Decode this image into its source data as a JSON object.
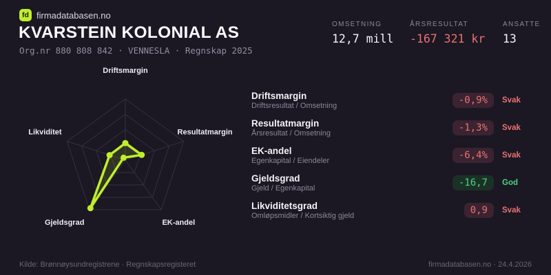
{
  "header": {
    "logo_text": "fd",
    "brand": "firmadatabasen.no",
    "company_name": "KVARSTEIN KOLONIAL AS",
    "subtitle": "Org.nr 880 808 842 · VENNESLA · Regnskap 2025"
  },
  "stats": {
    "items": [
      {
        "label": "OMSETNING",
        "value": "12,7 mill",
        "negative": false
      },
      {
        "label": "ÅRSRESULTAT",
        "value": "-167 321 kr",
        "negative": true
      },
      {
        "label": "ANSATTE",
        "value": "13",
        "negative": false
      }
    ]
  },
  "metrics": {
    "rows": [
      {
        "title": "Driftsmargin",
        "formula": "Driftsresultat / Omsetning",
        "value": "-0,9%",
        "status": "Svak",
        "tone": "bad"
      },
      {
        "title": "Resultatmargin",
        "formula": "Årsresultat / Omsetning",
        "value": "-1,3%",
        "status": "Svak",
        "tone": "bad"
      },
      {
        "title": "EK-andel",
        "formula": "Egenkapital / Eiendeler",
        "value": "-6,4%",
        "status": "Svak",
        "tone": "bad"
      },
      {
        "title": "Gjeldsgrad",
        "formula": "Gjeld / Egenkapital",
        "value": "-16,7",
        "status": "God",
        "tone": "good"
      },
      {
        "title": "Likviditetsgrad",
        "formula": "Omløpsmidler / Kortsiktig gjeld",
        "value": "0,9",
        "status": "Svak",
        "tone": "bad"
      }
    ]
  },
  "chart_data": {
    "type": "radar",
    "axes": [
      "Driftsmargin",
      "Resultatmargin",
      "EK-andel",
      "Gjeldsgrad",
      "Likviditet"
    ],
    "values_fraction": [
      0.28,
      0.28,
      -0.05,
      0.97,
      0.27
    ],
    "rings": [
      0.25,
      0.5,
      0.75,
      1.0
    ],
    "legend": "none",
    "colors": {
      "line": "#bfef2a",
      "fill": "rgba(191,239,42,0.14)",
      "grid": "#343040",
      "label": "#edebf2"
    }
  },
  "footer": {
    "left": "Kilde: Brønnøysundregistrene · Regnskapsregisteret",
    "right": "firmadatabasen.no · 24.4.2026"
  },
  "theme": {
    "background": "#1b1723",
    "accent": "#bfef2a",
    "bad": "#e97370",
    "good": "#48d584"
  }
}
